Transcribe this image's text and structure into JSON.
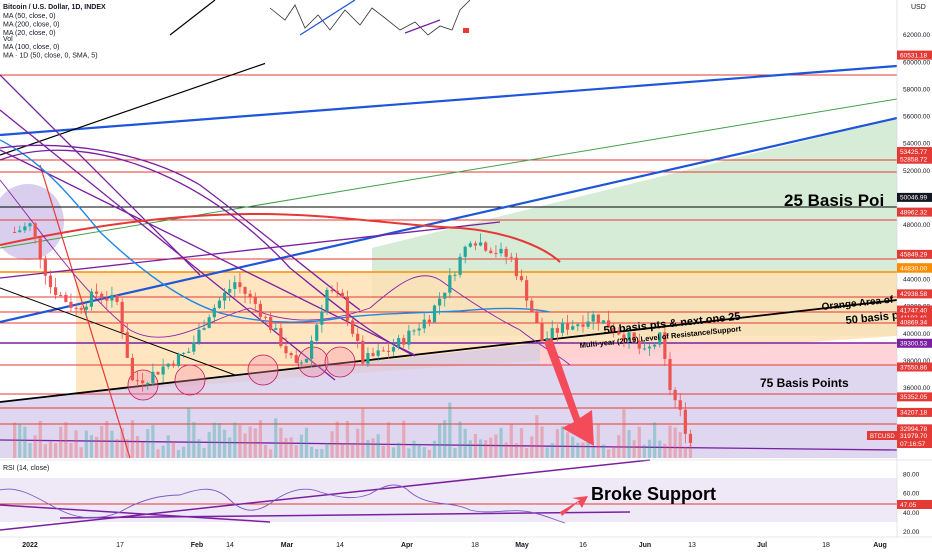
{
  "header": {
    "symbol_line": "Bitcoin / U.S. Dollar, 1D, INDEX",
    "indicators": [
      "MA (50, close, 0)",
      "MA (200, close, 0)",
      "MA (20, close, 0)",
      "Vol",
      "MA (100, close, 0)",
      "MA · 1D (50, close, 0, SMA, 5)"
    ],
    "currency": "USD"
  },
  "colors": {
    "candle_up": "#26a69a",
    "candle_down": "#ef5350",
    "level_line": "#e53935",
    "support_line": "#7b1fa2",
    "trend_blue": "#1e56d9",
    "trend_green": "#43a047",
    "ma200": "#e53935",
    "ma50": "#1e88e5",
    "ma20": "#8e24aa",
    "orange_zone": "#ffe0b2",
    "green_zone": "#c8e6c9",
    "red_zone": "#ffcdd2",
    "purple_zone": "#d1c4e9",
    "arrow": "#f44b5b"
  },
  "annotations": {
    "basis25": "25 Basis Poi",
    "orange_area": "Orange Area of",
    "basis50_next": "50 basis pts & next one 25",
    "basis50_right": "50 basis p",
    "multi_year": "Multi-year (2019) Level of Resistance/Support",
    "basis75": "75 Basis Points",
    "broke_support": "Broke Support"
  },
  "rsi": {
    "label": "RSI (14, close)",
    "current": "47.05",
    "ticks": [
      "80.00",
      "60.00",
      "40.00",
      "20.00"
    ]
  },
  "chart_data": {
    "type": "candlestick",
    "title": "Bitcoin / U.S. Dollar, 1D, INDEX",
    "x_labels": [
      "2022",
      "17",
      "Feb",
      "14",
      "Mar",
      "14",
      "Apr",
      "18",
      "May",
      "16",
      "Jun",
      "13",
      "Jul",
      "18",
      "Aug"
    ],
    "y_axis_ticks": [
      62000,
      60000,
      58000,
      56000,
      54000,
      52000,
      50000,
      48000,
      46000,
      44000,
      42000,
      40000,
      38000,
      36000,
      34000,
      32000
    ],
    "ylim": [
      30700,
      64000
    ],
    "price_labels": [
      {
        "value": "60531.18",
        "color": "red"
      },
      {
        "value": "53425.77",
        "color": "red"
      },
      {
        "value": "52858.72",
        "color": "red"
      },
      {
        "value": "50046.99",
        "color": "black"
      },
      {
        "value": "48962.32",
        "color": "red"
      },
      {
        "value": "45849.29",
        "color": "red"
      },
      {
        "value": "44868.66",
        "color": "orange"
      },
      {
        "value": "44830.00",
        "color": "orange"
      },
      {
        "value": "42938.58",
        "color": "red"
      },
      {
        "value": "41747.40",
        "color": "red"
      },
      {
        "value": "41182.40",
        "color": "red"
      },
      {
        "value": "40869.34",
        "color": "red"
      },
      {
        "value": "39300.53",
        "color": "purple"
      },
      {
        "value": "37550.86",
        "color": "red"
      },
      {
        "value": "35352.05",
        "color": "red"
      },
      {
        "value": "34207.18",
        "color": "red"
      },
      {
        "value": "32994.78",
        "color": "red"
      },
      {
        "value": "31979.70",
        "color": "red"
      }
    ],
    "current_price": {
      "symbol": "BTCUSD",
      "value": "31979.70",
      "countdown": "07:16:57"
    },
    "price_path": [
      {
        "date": "2021-12-29",
        "close": 47500
      },
      {
        "date": "2022-01-01",
        "close": 48000
      },
      {
        "date": "2022-01-05",
        "close": 43500
      },
      {
        "date": "2022-01-10",
        "close": 41800
      },
      {
        "date": "2022-01-14",
        "close": 43000
      },
      {
        "date": "2022-01-18",
        "close": 42300
      },
      {
        "date": "2022-01-21",
        "close": 36500
      },
      {
        "date": "2022-01-24",
        "close": 36800
      },
      {
        "date": "2022-01-28",
        "close": 37800
      },
      {
        "date": "2022-02-01",
        "close": 38700
      },
      {
        "date": "2022-02-05",
        "close": 41500
      },
      {
        "date": "2022-02-10",
        "close": 43800
      },
      {
        "date": "2022-02-14",
        "close": 42200
      },
      {
        "date": "2022-02-18",
        "close": 40000
      },
      {
        "date": "2022-02-22",
        "close": 37500
      },
      {
        "date": "2022-02-24",
        "close": 38300
      },
      {
        "date": "2022-02-28",
        "close": 43200
      },
      {
        "date": "2022-03-03",
        "close": 42400
      },
      {
        "date": "2022-03-07",
        "close": 38000
      },
      {
        "date": "2022-03-12",
        "close": 38800
      },
      {
        "date": "2022-03-15",
        "close": 39600
      },
      {
        "date": "2022-03-20",
        "close": 41300
      },
      {
        "date": "2022-03-24",
        "close": 44000
      },
      {
        "date": "2022-03-28",
        "close": 47100
      },
      {
        "date": "2022-04-01",
        "close": 46300
      },
      {
        "date": "2022-04-05",
        "close": 45500
      },
      {
        "date": "2022-04-08",
        "close": 42800
      },
      {
        "date": "2022-04-11",
        "close": 39500
      },
      {
        "date": "2022-04-15",
        "close": 40500
      },
      {
        "date": "2022-04-18",
        "close": 40800
      },
      {
        "date": "2022-04-21",
        "close": 41300
      },
      {
        "date": "2022-04-25",
        "close": 40400
      },
      {
        "date": "2022-04-28",
        "close": 39700
      },
      {
        "date": "2022-05-01",
        "close": 38500
      },
      {
        "date": "2022-05-04",
        "close": 39700
      },
      {
        "date": "2022-05-06",
        "close": 36000
      },
      {
        "date": "2022-05-08",
        "close": 34100
      },
      {
        "date": "2022-05-10",
        "close": 31979.7
      }
    ]
  }
}
